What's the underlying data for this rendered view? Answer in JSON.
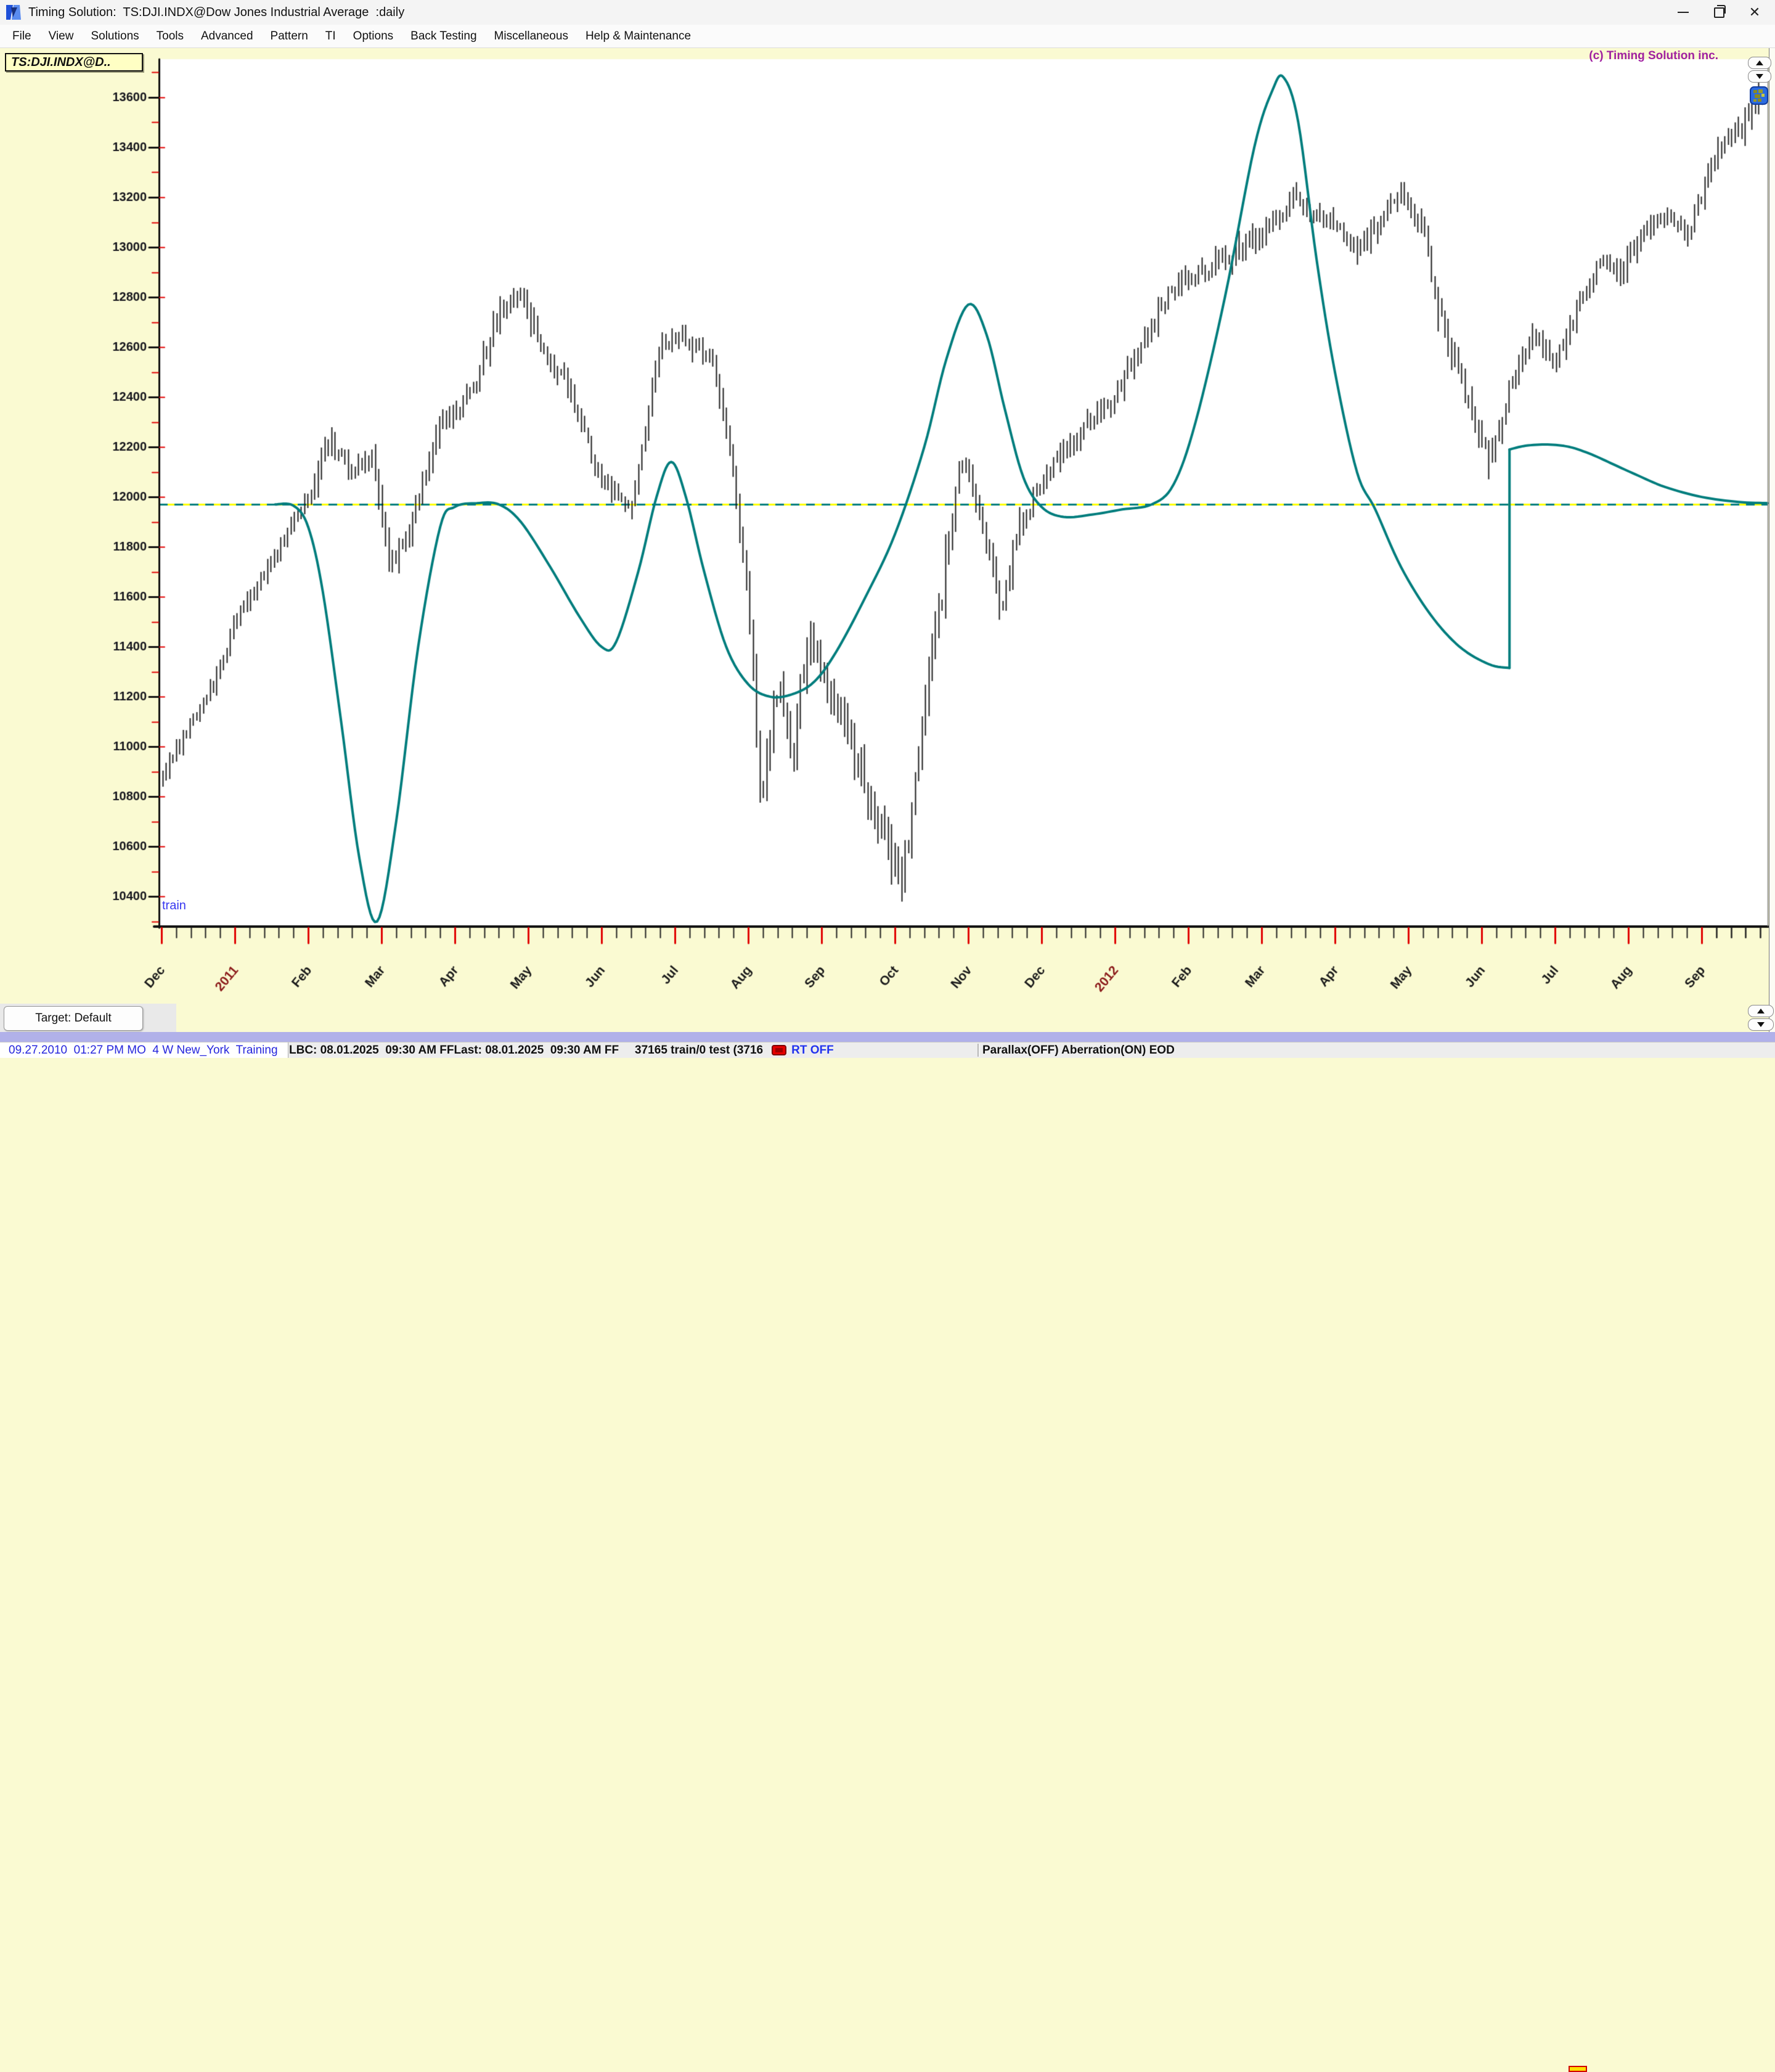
{
  "window": {
    "title": "Timing Solution:  TS:DJI.INDX@Dow Jones Industrial Average  :daily",
    "controls": {
      "minimize": "minimize",
      "restore": "restore",
      "close": "close"
    }
  },
  "menu": {
    "items": [
      "File",
      "View",
      "Solutions",
      "Tools",
      "Advanced",
      "Pattern",
      "TI",
      "Options",
      "Back Testing",
      "Miscellaneous",
      "Help & Maintenance"
    ]
  },
  "chart_tab": {
    "label": "TS:DJI.INDX@D.."
  },
  "copyright": "(c) Timing Solution inc.",
  "target_button": {
    "label": "Target: Default"
  },
  "status_bar": {
    "left": "09.27.2010  01:27 PM MO  4 W New_York  Training",
    "lbc": "LBC: 08.01.2025  09:30 AM FF",
    "last": "Last: 08.01.2025  09:30 AM FF",
    "counts": "37165 train/0 test (3716",
    "rt": "RT OFF",
    "right": "Parallax(OFF) Aberration(ON) EOD"
  },
  "colors": {
    "client_bg": "#FAFAD2",
    "plot_bg": "#FFFFFF",
    "bars": "#1c1c1c",
    "curve": "#007d7d",
    "ref_yellow": "#FFFF00",
    "tick_red": "#E00000",
    "axis": "#101010",
    "year_label": "#8B1A1A",
    "month_label": "#1a1a1a",
    "strip": "#B1B1E9"
  },
  "chart_data": {
    "type": "line",
    "subtype": "hl-bars-with-projection-line",
    "symbol": "TS:DJI.INDX@Dow Jones Industrial Average",
    "timeframe": "daily",
    "train_label": "train",
    "y_axis": {
      "labels": [
        13600,
        13400,
        13200,
        13000,
        12800,
        12600,
        12400,
        12200,
        12000,
        11800,
        11600,
        11400,
        11200,
        11000,
        10800,
        10600,
        10400
      ],
      "major_step": 200,
      "minor_step": 100,
      "ylim": [
        10282,
        13753
      ]
    },
    "x_axis": {
      "months": [
        "Dec",
        "2011",
        "Feb",
        "Mar",
        "Apr",
        "May",
        "Jun",
        "Jul",
        "Aug",
        "Sep",
        "Oct",
        "Nov",
        "Dec",
        "2012",
        "Feb",
        "Mar",
        "Apr",
        "May",
        "Jun",
        "Jul",
        "Aug",
        "Sep"
      ],
      "year_indices": [
        1,
        13
      ],
      "minor_ticks_per_month": 4,
      "xlim_months": [
        -0.03,
        21.9
      ]
    },
    "reference_line_value": 11970,
    "price_path_monthly": [
      [
        0,
        10880
      ],
      [
        0.3,
        11050
      ],
      [
        0.7,
        11250
      ],
      [
        1.0,
        11500
      ],
      [
        1.4,
        11700
      ],
      [
        2.0,
        12000
      ],
      [
        2.3,
        12230
      ],
      [
        2.6,
        12100
      ],
      [
        2.9,
        12150
      ],
      [
        3.1,
        11700
      ],
      [
        3.4,
        11900
      ],
      [
        3.8,
        12300
      ],
      [
        4.2,
        12400
      ],
      [
        4.6,
        12750
      ],
      [
        4.9,
        12800
      ],
      [
        5.2,
        12600
      ],
      [
        5.6,
        12400
      ],
      [
        6.0,
        12050
      ],
      [
        6.4,
        11950
      ],
      [
        6.8,
        12600
      ],
      [
        7.1,
        12650
      ],
      [
        7.5,
        12550
      ],
      [
        7.8,
        12100
      ],
      [
        8.05,
        11400
      ],
      [
        8.15,
        10750
      ],
      [
        8.4,
        11250
      ],
      [
        8.6,
        10950
      ],
      [
        8.8,
        11450
      ],
      [
        9.1,
        11250
      ],
      [
        9.4,
        11000
      ],
      [
        9.65,
        10750
      ],
      [
        9.9,
        10620
      ],
      [
        10.1,
        10450
      ],
      [
        10.35,
        11050
      ],
      [
        10.65,
        11650
      ],
      [
        10.9,
        12150
      ],
      [
        11.15,
        11950
      ],
      [
        11.45,
        11550
      ],
      [
        11.7,
        11900
      ],
      [
        12.0,
        12050
      ],
      [
        12.3,
        12200
      ],
      [
        12.65,
        12300
      ],
      [
        13.0,
        12400
      ],
      [
        13.4,
        12650
      ],
      [
        13.8,
        12850
      ],
      [
        14.2,
        12900
      ],
      [
        14.6,
        12980
      ],
      [
        15.0,
        13050
      ],
      [
        15.4,
        13200
      ],
      [
        15.7,
        13100
      ],
      [
        16.0,
        13100
      ],
      [
        16.3,
        13000
      ],
      [
        16.6,
        13100
      ],
      [
        16.9,
        13250
      ],
      [
        17.2,
        13050
      ],
      [
        17.5,
        12650
      ],
      [
        17.8,
        12400
      ],
      [
        18.1,
        12150
      ],
      [
        18.4,
        12450
      ],
      [
        18.7,
        12650
      ],
      [
        19.0,
        12550
      ],
      [
        19.3,
        12750
      ],
      [
        19.6,
        12950
      ],
      [
        19.9,
        12900
      ],
      [
        20.2,
        13050
      ],
      [
        20.5,
        13150
      ],
      [
        20.8,
        13050
      ],
      [
        21.1,
        13300
      ],
      [
        21.4,
        13450
      ],
      [
        21.7,
        13550
      ],
      [
        21.85,
        13620
      ]
    ],
    "volatility_regions": [
      [
        0,
        2,
        0.8
      ],
      [
        2.9,
        3.5,
        1.45
      ],
      [
        8.0,
        10.8,
        2.0
      ],
      [
        17.1,
        18.2,
        1.35
      ]
    ],
    "projection_curve_segments": [
      [
        [
          1.55,
          11970
        ],
        [
          1.8,
          11965
        ],
        [
          2.0,
          11880
        ],
        [
          2.2,
          11620
        ],
        [
          2.45,
          11100
        ],
        [
          2.7,
          10550
        ],
        [
          2.94,
          10300
        ],
        [
          3.2,
          10700
        ],
        [
          3.5,
          11400
        ],
        [
          3.8,
          11880
        ],
        [
          4.0,
          11960
        ],
        [
          4.3,
          11975
        ],
        [
          4.6,
          11970
        ],
        [
          4.9,
          11900
        ],
        [
          5.3,
          11720
        ],
        [
          5.7,
          11520
        ],
        [
          6.0,
          11400
        ],
        [
          6.2,
          11420
        ],
        [
          6.5,
          11700
        ],
        [
          6.75,
          12000
        ],
        [
          6.95,
          12140
        ],
        [
          7.15,
          12000
        ],
        [
          7.4,
          11700
        ],
        [
          7.7,
          11400
        ],
        [
          8.0,
          11250
        ],
        [
          8.3,
          11200
        ],
        [
          8.6,
          11210
        ],
        [
          8.9,
          11260
        ],
        [
          9.2,
          11380
        ],
        [
          9.6,
          11600
        ],
        [
          10.0,
          11850
        ],
        [
          10.4,
          12200
        ],
        [
          10.7,
          12550
        ],
        [
          11.0,
          12770
        ],
        [
          11.25,
          12650
        ],
        [
          11.5,
          12350
        ],
        [
          11.75,
          12080
        ],
        [
          12.0,
          11960
        ],
        [
          12.3,
          11920
        ],
        [
          12.7,
          11930
        ],
        [
          13.1,
          11950
        ],
        [
          13.5,
          11970
        ],
        [
          13.8,
          12050
        ],
        [
          14.1,
          12300
        ],
        [
          14.5,
          12800
        ],
        [
          14.9,
          13400
        ],
        [
          15.15,
          13630
        ],
        [
          15.3,
          13680
        ],
        [
          15.5,
          13500
        ],
        [
          15.75,
          12950
        ],
        [
          16.0,
          12500
        ],
        [
          16.3,
          12100
        ],
        [
          16.55,
          11950
        ],
        [
          16.9,
          11720
        ],
        [
          17.3,
          11530
        ],
        [
          17.7,
          11400
        ],
        [
          18.1,
          11330
        ],
        [
          18.38,
          11315
        ]
      ],
      [
        [
          18.38,
          12190
        ],
        [
          18.6,
          12205
        ],
        [
          18.9,
          12210
        ],
        [
          19.2,
          12200
        ],
        [
          19.5,
          12170
        ],
        [
          19.8,
          12130
        ],
        [
          20.1,
          12090
        ],
        [
          20.5,
          12040
        ],
        [
          21.0,
          12000
        ],
        [
          21.5,
          11980
        ],
        [
          21.9,
          11975
        ]
      ]
    ]
  }
}
